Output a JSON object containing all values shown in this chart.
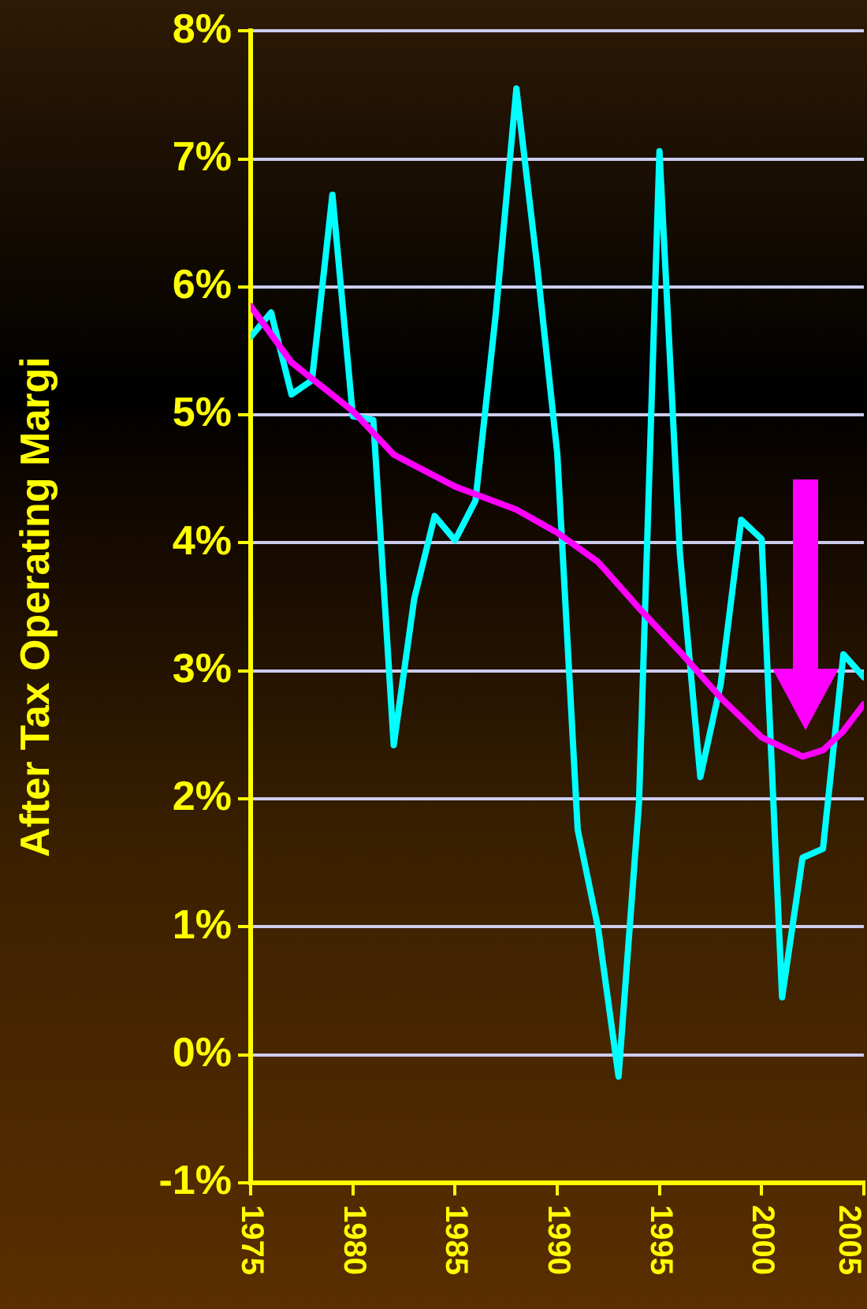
{
  "chart_data": {
    "type": "line",
    "ylabel": "After Tax Operating Margi",
    "x": [
      1975,
      1976,
      1977,
      1978,
      1979,
      1980,
      1981,
      1982,
      1983,
      1984,
      1985,
      1986,
      1987,
      1988,
      1989,
      1990,
      1991,
      1992,
      1993,
      1994,
      1995,
      1996,
      1997,
      1998,
      1999,
      2000,
      2001,
      2002,
      2003,
      2004,
      2005
    ],
    "series": [
      {
        "color": "#00ffff",
        "values": [
          5.61,
          5.8,
          5.16,
          5.27,
          6.72,
          4.99,
          4.96,
          2.42,
          3.56,
          4.21,
          4.02,
          4.33,
          5.8,
          7.55,
          6.19,
          4.7,
          1.76,
          0.99,
          -0.17,
          1.97,
          7.06,
          3.92,
          2.17,
          2.9,
          4.18,
          4.03,
          0.45,
          1.54,
          1.61,
          3.13,
          2.95
        ]
      },
      {
        "type": "line",
        "color": "#ff00ff",
        "x": [
          1975,
          1977,
          1980,
          1982,
          1985,
          1988,
          1990,
          1992,
          1994,
          1996,
          1998,
          2000,
          2002,
          2003,
          2004,
          2005
        ],
        "values": [
          5.85,
          5.41,
          5.03,
          4.69,
          4.44,
          4.26,
          4.08,
          3.85,
          3.49,
          3.15,
          2.79,
          2.48,
          2.33,
          2.38,
          2.53,
          2.74
        ]
      }
    ],
    "xlim": [
      1975,
      2005
    ],
    "xticks": [
      1975,
      1980,
      1985,
      1990,
      1995,
      2000,
      2005
    ],
    "ylim": [
      -1,
      8
    ],
    "yticks": [
      {
        "value": -1,
        "label": "-1%"
      },
      {
        "value": 0,
        "label": "0%"
      },
      {
        "value": 1,
        "label": "1%"
      },
      {
        "value": 2,
        "label": "2%"
      },
      {
        "value": 3,
        "label": "3%"
      },
      {
        "value": 4,
        "label": "4%"
      },
      {
        "value": 5,
        "label": "5%"
      },
      {
        "value": 6,
        "label": "6%"
      },
      {
        "value": 7,
        "label": "7%"
      },
      {
        "value": 8,
        "label": "8%"
      }
    ],
    "grid": "y",
    "legend": false,
    "marker": "none",
    "line_style": "solid"
  }
}
